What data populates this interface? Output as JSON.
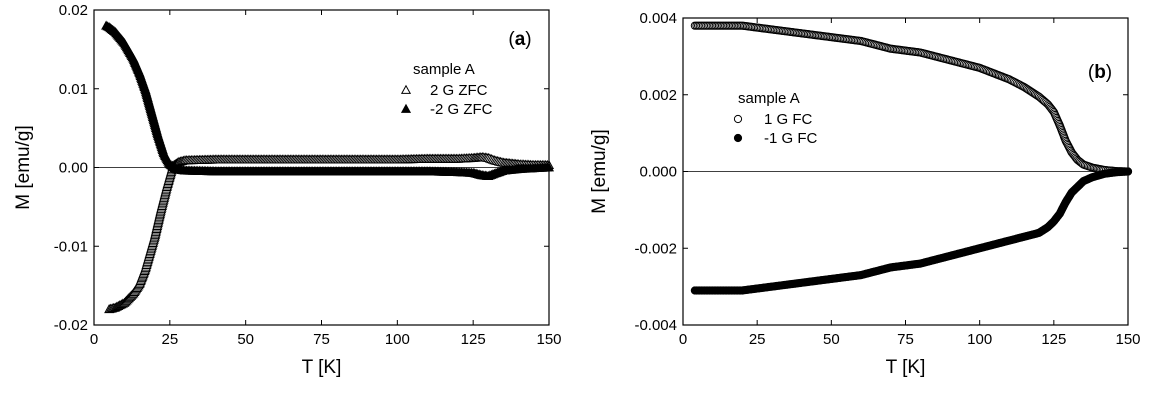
{
  "chart_data": [
    {
      "type": "scatter",
      "panel_label": {
        "open": "(",
        "letter": "a",
        "close": ")"
      },
      "xlabel": "T [K]",
      "ylabel": "M [emu/g]",
      "xlim": [
        0,
        150
      ],
      "ylim": [
        -0.02,
        0.02
      ],
      "xticks": [
        0,
        25,
        50,
        75,
        100,
        125,
        150
      ],
      "xtick_labels": [
        "0",
        "25",
        "50",
        "75",
        "100",
        "125",
        "150"
      ],
      "yticks": [
        -0.02,
        -0.01,
        0.0,
        0.01,
        0.02
      ],
      "ytick_labels": [
        "-0.02",
        "-0.01",
        "0.00",
        "0.01",
        "0.02"
      ],
      "zero_line": true,
      "grid": false,
      "legend_title": "sample A",
      "legend_position": "upper-right",
      "series": [
        {
          "name": "2 G ZFC",
          "marker": "triangle-open",
          "x": [
            5,
            7,
            10,
            13,
            15,
            17,
            20,
            22,
            24,
            26,
            28,
            30,
            40,
            50,
            60,
            70,
            80,
            90,
            100,
            110,
            120,
            125,
            128,
            130,
            132,
            135,
            140,
            145,
            150
          ],
          "y": [
            -0.018,
            -0.0178,
            -0.0172,
            -0.016,
            -0.0148,
            -0.0128,
            -0.0088,
            -0.0055,
            -0.0025,
            0.0002,
            0.0007,
            0.0009,
            0.001,
            0.001,
            0.001,
            0.001,
            0.001,
            0.001,
            0.001,
            0.0011,
            0.0011,
            0.0012,
            0.0013,
            0.0012,
            0.0009,
            0.0006,
            0.0004,
            0.0003,
            0.0003
          ]
        },
        {
          "name": "-2 G ZFC",
          "marker": "triangle-filled",
          "x": [
            4,
            5,
            7,
            10,
            13,
            15,
            17,
            19,
            21,
            23,
            25,
            27,
            30,
            40,
            50,
            60,
            70,
            80,
            90,
            100,
            110,
            120,
            125,
            128,
            130,
            132,
            135,
            140,
            145,
            150
          ],
          "y": [
            0.018,
            0.0178,
            0.0172,
            0.0158,
            0.0138,
            0.012,
            0.0098,
            0.007,
            0.0042,
            0.0018,
            0.0004,
            -0.0002,
            -0.0004,
            -0.0005,
            -0.0005,
            -0.0005,
            -0.0005,
            -0.0005,
            -0.0005,
            -0.0005,
            -0.0005,
            -0.0006,
            -0.0007,
            -0.001,
            -0.0011,
            -0.0008,
            -0.0004,
            -0.0002,
            -0.0001,
            0.0
          ]
        }
      ]
    },
    {
      "type": "scatter",
      "panel_label": {
        "open": "(",
        "letter": "b",
        "close": ")"
      },
      "xlabel": "T [K]",
      "ylabel": "M [emu/g]",
      "xlim": [
        0,
        150
      ],
      "ylim": [
        -0.004,
        0.004
      ],
      "xticks": [
        0,
        25,
        50,
        75,
        100,
        125,
        150
      ],
      "xtick_labels": [
        "0",
        "25",
        "50",
        "75",
        "100",
        "125",
        "150"
      ],
      "yticks": [
        -0.004,
        -0.002,
        0.0,
        0.002,
        0.004
      ],
      "ytick_labels": [
        "-0.004",
        "-0.002",
        "0.000",
        "0.002",
        "0.004"
      ],
      "zero_line": true,
      "grid": false,
      "legend_title": "sample A",
      "legend_position": "upper-left",
      "series": [
        {
          "name": "1 G FC",
          "marker": "circle-open",
          "x": [
            4,
            10,
            20,
            30,
            40,
            50,
            60,
            70,
            80,
            90,
            100,
            110,
            115,
            120,
            123,
            125,
            127,
            129,
            131,
            133,
            135,
            138,
            142,
            146,
            150
          ],
          "y": [
            0.0038,
            0.0038,
            0.0038,
            0.0037,
            0.0036,
            0.0035,
            0.0034,
            0.0032,
            0.0031,
            0.0029,
            0.0027,
            0.0024,
            0.0022,
            0.00195,
            0.00175,
            0.00155,
            0.0012,
            0.0008,
            0.0005,
            0.0003,
            0.00018,
            0.0001,
            4e-05,
            1e-05,
            0.0
          ]
        },
        {
          "name": "-1 G FC",
          "marker": "circle-filled",
          "x": [
            4,
            10,
            20,
            30,
            40,
            50,
            60,
            70,
            80,
            90,
            100,
            110,
            115,
            120,
            123,
            125,
            127,
            129,
            131,
            133,
            135,
            138,
            142,
            146,
            150
          ],
          "y": [
            -0.0031,
            -0.0031,
            -0.0031,
            -0.003,
            -0.0029,
            -0.0028,
            -0.0027,
            -0.0025,
            -0.0024,
            -0.0022,
            -0.002,
            -0.0018,
            -0.0017,
            -0.0016,
            -0.00145,
            -0.0013,
            -0.0011,
            -0.0008,
            -0.00055,
            -0.0004,
            -0.00025,
            -0.00015,
            -6e-05,
            -2e-05,
            0.0
          ]
        }
      ]
    }
  ]
}
